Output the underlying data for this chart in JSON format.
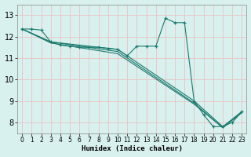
{
  "xlabel": "Humidex (Indice chaleur)",
  "ylabel": "",
  "background_color": "#d8f0ee",
  "grid_color": "#e8c8c8",
  "line_color": "#1a7a6e",
  "xlim": [
    -0.5,
    23.5
  ],
  "ylim": [
    7.5,
    13.5
  ],
  "xticks": [
    0,
    1,
    2,
    3,
    4,
    5,
    6,
    7,
    8,
    9,
    10,
    11,
    12,
    13,
    14,
    15,
    16,
    17,
    18,
    19,
    20,
    21,
    22,
    23
  ],
  "yticks": [
    8,
    9,
    10,
    11,
    12,
    13
  ],
  "series1_x": [
    0,
    1,
    2,
    3,
    4,
    5,
    6,
    7,
    8,
    9,
    10,
    11,
    12,
    13,
    14,
    15,
    16,
    17,
    18,
    19,
    20,
    21,
    22,
    23
  ],
  "series1_y": [
    12.35,
    12.35,
    12.3,
    11.75,
    11.6,
    11.55,
    11.5,
    11.5,
    11.5,
    11.45,
    11.4,
    11.1,
    11.55,
    11.55,
    11.55,
    12.85,
    12.65,
    12.65,
    9.0,
    8.35,
    7.8,
    7.8,
    8.0,
    8.5
  ],
  "series2_x": [
    0,
    3,
    10,
    18,
    21,
    23
  ],
  "series2_y": [
    12.35,
    11.75,
    11.4,
    9.0,
    7.8,
    8.5
  ],
  "series3_x": [
    0,
    3,
    10,
    18,
    21,
    23
  ],
  "series3_y": [
    12.35,
    11.75,
    11.3,
    8.9,
    7.75,
    8.5
  ],
  "series4_x": [
    0,
    3,
    10,
    18,
    21,
    23
  ],
  "series4_y": [
    12.35,
    11.7,
    11.2,
    8.85,
    7.75,
    8.45
  ]
}
